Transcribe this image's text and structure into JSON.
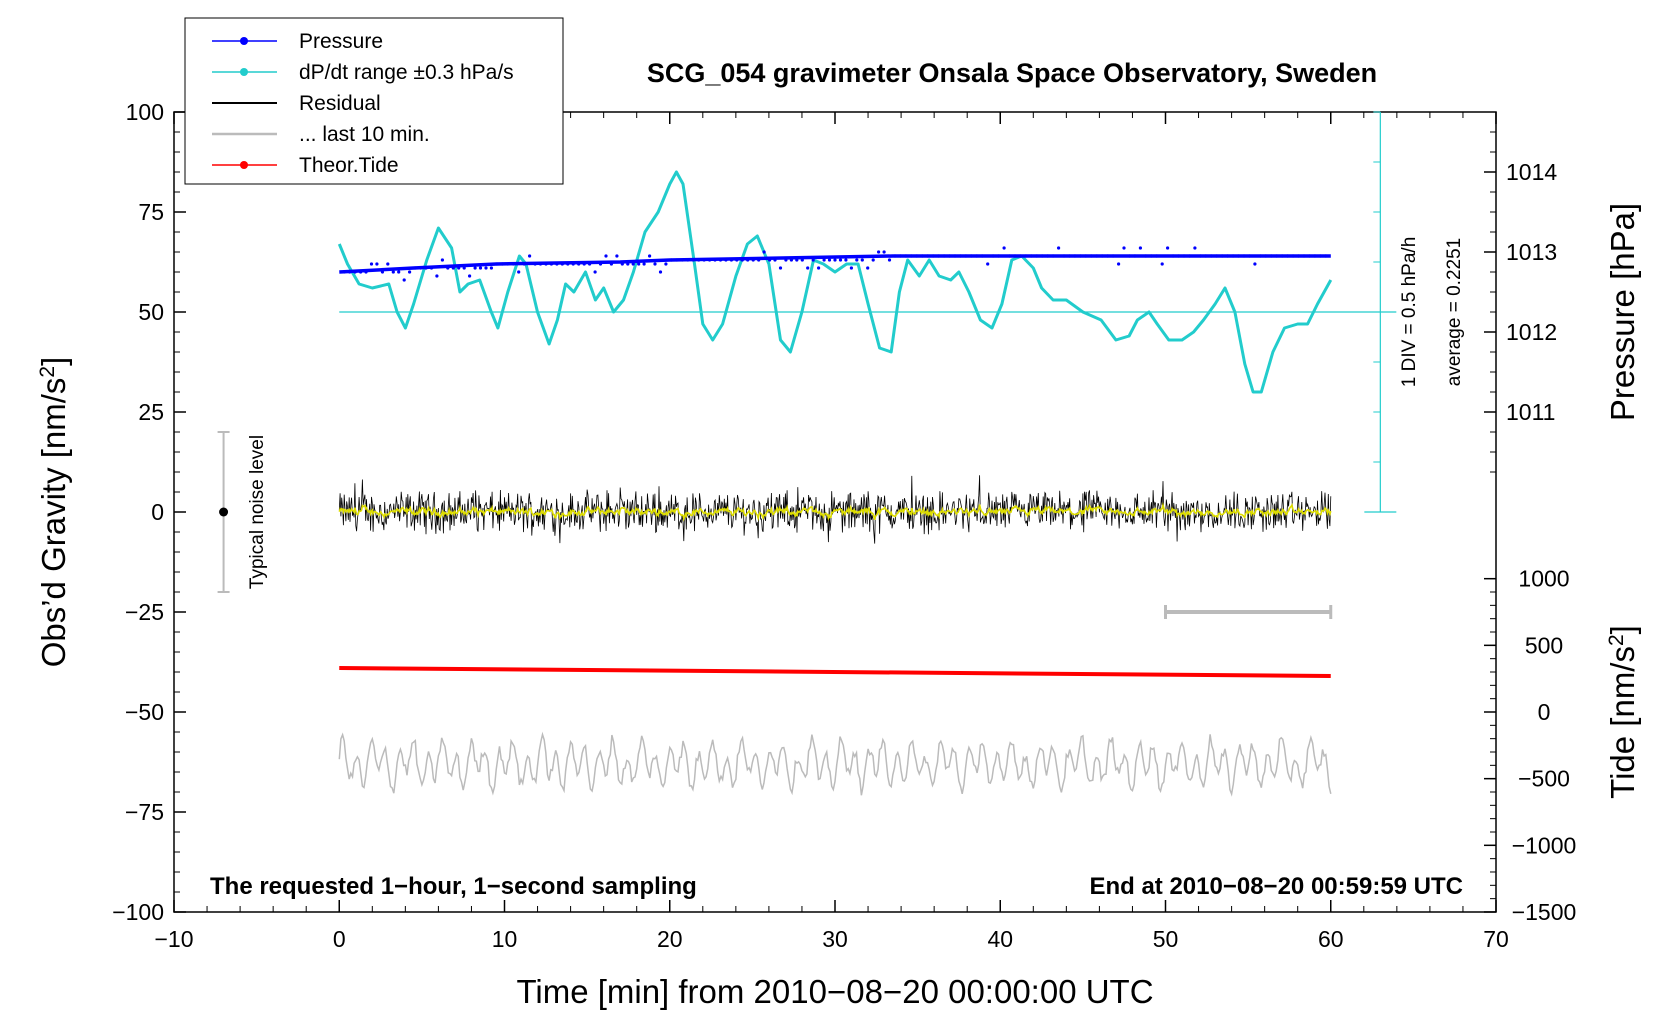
{
  "chart_data": {
    "type": "line",
    "title": "SCG_054 gravimeter Onsala Space Observatory, Sweden",
    "xlabel": "Time [min] from 2010−08−20 00:00:00 UTC",
    "ylabel": "Obs’d Gravity [nm/s²]",
    "ylabel_main": "Obs’d Gravity [nm/s",
    "ylabel_sup": "2",
    "ylabel_close": "]",
    "xlim": [
      -10,
      70
    ],
    "ylim": [
      -100,
      100
    ],
    "x_ticks": [
      -10,
      0,
      10,
      20,
      30,
      40,
      50,
      60,
      70
    ],
    "x_tick_labels": [
      "−10",
      "0",
      "10",
      "20",
      "30",
      "40",
      "50",
      "60",
      "70"
    ],
    "y_ticks": [
      -100,
      -75,
      -50,
      -25,
      0,
      25,
      50,
      75,
      100
    ],
    "y_tick_labels": [
      "−100",
      "−75",
      "−50",
      "−25",
      "0",
      "25",
      "50",
      "75",
      "100"
    ],
    "pressure_axis": {
      "label": "Pressure [hPa]",
      "ticks": [
        1011,
        1012,
        1013,
        1014
      ],
      "tick_labels": [
        "1011",
        "1012",
        "1013",
        "1014"
      ],
      "gravity_at_1012": 45,
      "gravity_per_hPa": 20
    },
    "tide_axis": {
      "label_main": "Tide [nm/s",
      "label_sup": "2",
      "label_close": "]",
      "ticks": [
        -1500,
        -1000,
        -500,
        0,
        500,
        1000
      ],
      "tick_labels": [
        "−1500",
        "−1000",
        "−500",
        "0",
        "500",
        "1000"
      ],
      "gravity_at_0": -50,
      "gravity_per_unit": 0.03333
    },
    "dpdt_scale": {
      "label_div": "1 DIV = 0.5 hPa/h",
      "label_avg": "average = 0.2251",
      "baseline_gravity": 50,
      "range_gravity": [
        0,
        100
      ]
    },
    "legend": [
      {
        "label": "Pressure",
        "color": "#0000ff",
        "marker": true
      },
      {
        "label": "dP/dt range ±0.3 hPa/s",
        "color": "#22cccc",
        "marker": true
      },
      {
        "label": "Residual",
        "color": "#000000",
        "marker": false
      },
      {
        "label": "... last 10 min.",
        "color": "#bbbbbb",
        "marker": false
      },
      {
        "label": "Theor.Tide",
        "color": "#ff0000",
        "marker": true
      }
    ],
    "noise_label": "Typical noise level",
    "noise_bar": {
      "x": -7,
      "y": 0,
      "low": -20,
      "high": 20
    },
    "last10_bar": {
      "x_start": 50,
      "x_end": 60,
      "y": -25
    },
    "note_left": "The requested 1−hour, 1−second sampling",
    "note_right": "End at 2010−08−20 00:59:59 UTC",
    "series": [
      {
        "name": "Pressure",
        "color": "#0000ff",
        "x": [
          0,
          4.5,
          9.5,
          17,
          20,
          33.5,
          36,
          60
        ],
        "y": [
          60,
          61,
          62,
          62,
          63,
          64,
          64,
          64
        ]
      },
      {
        "name": "dP/dt",
        "color": "#22cccc",
        "x": [
          0,
          0.5,
          1.2,
          2,
          3,
          3.5,
          4,
          4.5,
          5.3,
          6,
          6.8,
          7.3,
          7.8,
          8.5,
          9.2,
          9.6,
          10.2,
          10.9,
          11.3,
          12,
          12.7,
          13.2,
          13.7,
          14.2,
          14.9,
          15.5,
          16,
          16.6,
          17.2,
          17.8,
          18.5,
          19.3,
          20,
          20.4,
          20.8,
          21.5,
          22,
          22.6,
          23.2,
          24,
          24.7,
          25.3,
          26,
          26.7,
          27.3,
          28,
          28.7,
          29.3,
          30,
          30.7,
          31.4,
          32,
          32.7,
          33.4,
          33.9,
          34.4,
          35.1,
          35.7,
          36.3,
          37,
          37.5,
          38.1,
          38.8,
          39.5,
          40.1,
          40.7,
          41.3,
          42,
          42.5,
          43.2,
          44,
          45,
          46.1,
          47,
          47.8,
          48.3,
          49,
          49.5,
          50.2,
          51,
          51.7,
          52.3,
          53,
          53.6,
          54.2,
          54.8,
          55.3,
          55.8,
          56.5,
          57.2,
          58,
          58.6,
          59.2,
          60
        ],
        "y": [
          67,
          62,
          57,
          56,
          57,
          50,
          46,
          52,
          63,
          71,
          66,
          55,
          57,
          58,
          50,
          46,
          55,
          64,
          62,
          50,
          42,
          48,
          57,
          55,
          60,
          53,
          56,
          50,
          53,
          60,
          70,
          75,
          82,
          85,
          82,
          62,
          47,
          43,
          47,
          59,
          67,
          69,
          62,
          43,
          40,
          50,
          63,
          62,
          60,
          62,
          62,
          52,
          41,
          40,
          55,
          63,
          59,
          63,
          59,
          58,
          60,
          55,
          48,
          46,
          52,
          63,
          64,
          61,
          56,
          53,
          53,
          50,
          48,
          43,
          44,
          48,
          50,
          47,
          43,
          43,
          45,
          48,
          52,
          56,
          50,
          37,
          30,
          30,
          40,
          46,
          47,
          47,
          52,
          58
        ]
      },
      {
        "name": "Residual",
        "color": "#000000",
        "x": [
          0,
          60
        ],
        "y": [
          0,
          0
        ]
      },
      {
        "name": "Theor.Tide",
        "color": "#ff0000",
        "x": [
          0,
          60
        ],
        "y": [
          -39,
          -41
        ]
      },
      {
        "name": "... last 10 min.",
        "color": "#bbbbbb",
        "x": [
          0,
          60
        ],
        "y": [
          -63,
          -63
        ]
      }
    ]
  }
}
